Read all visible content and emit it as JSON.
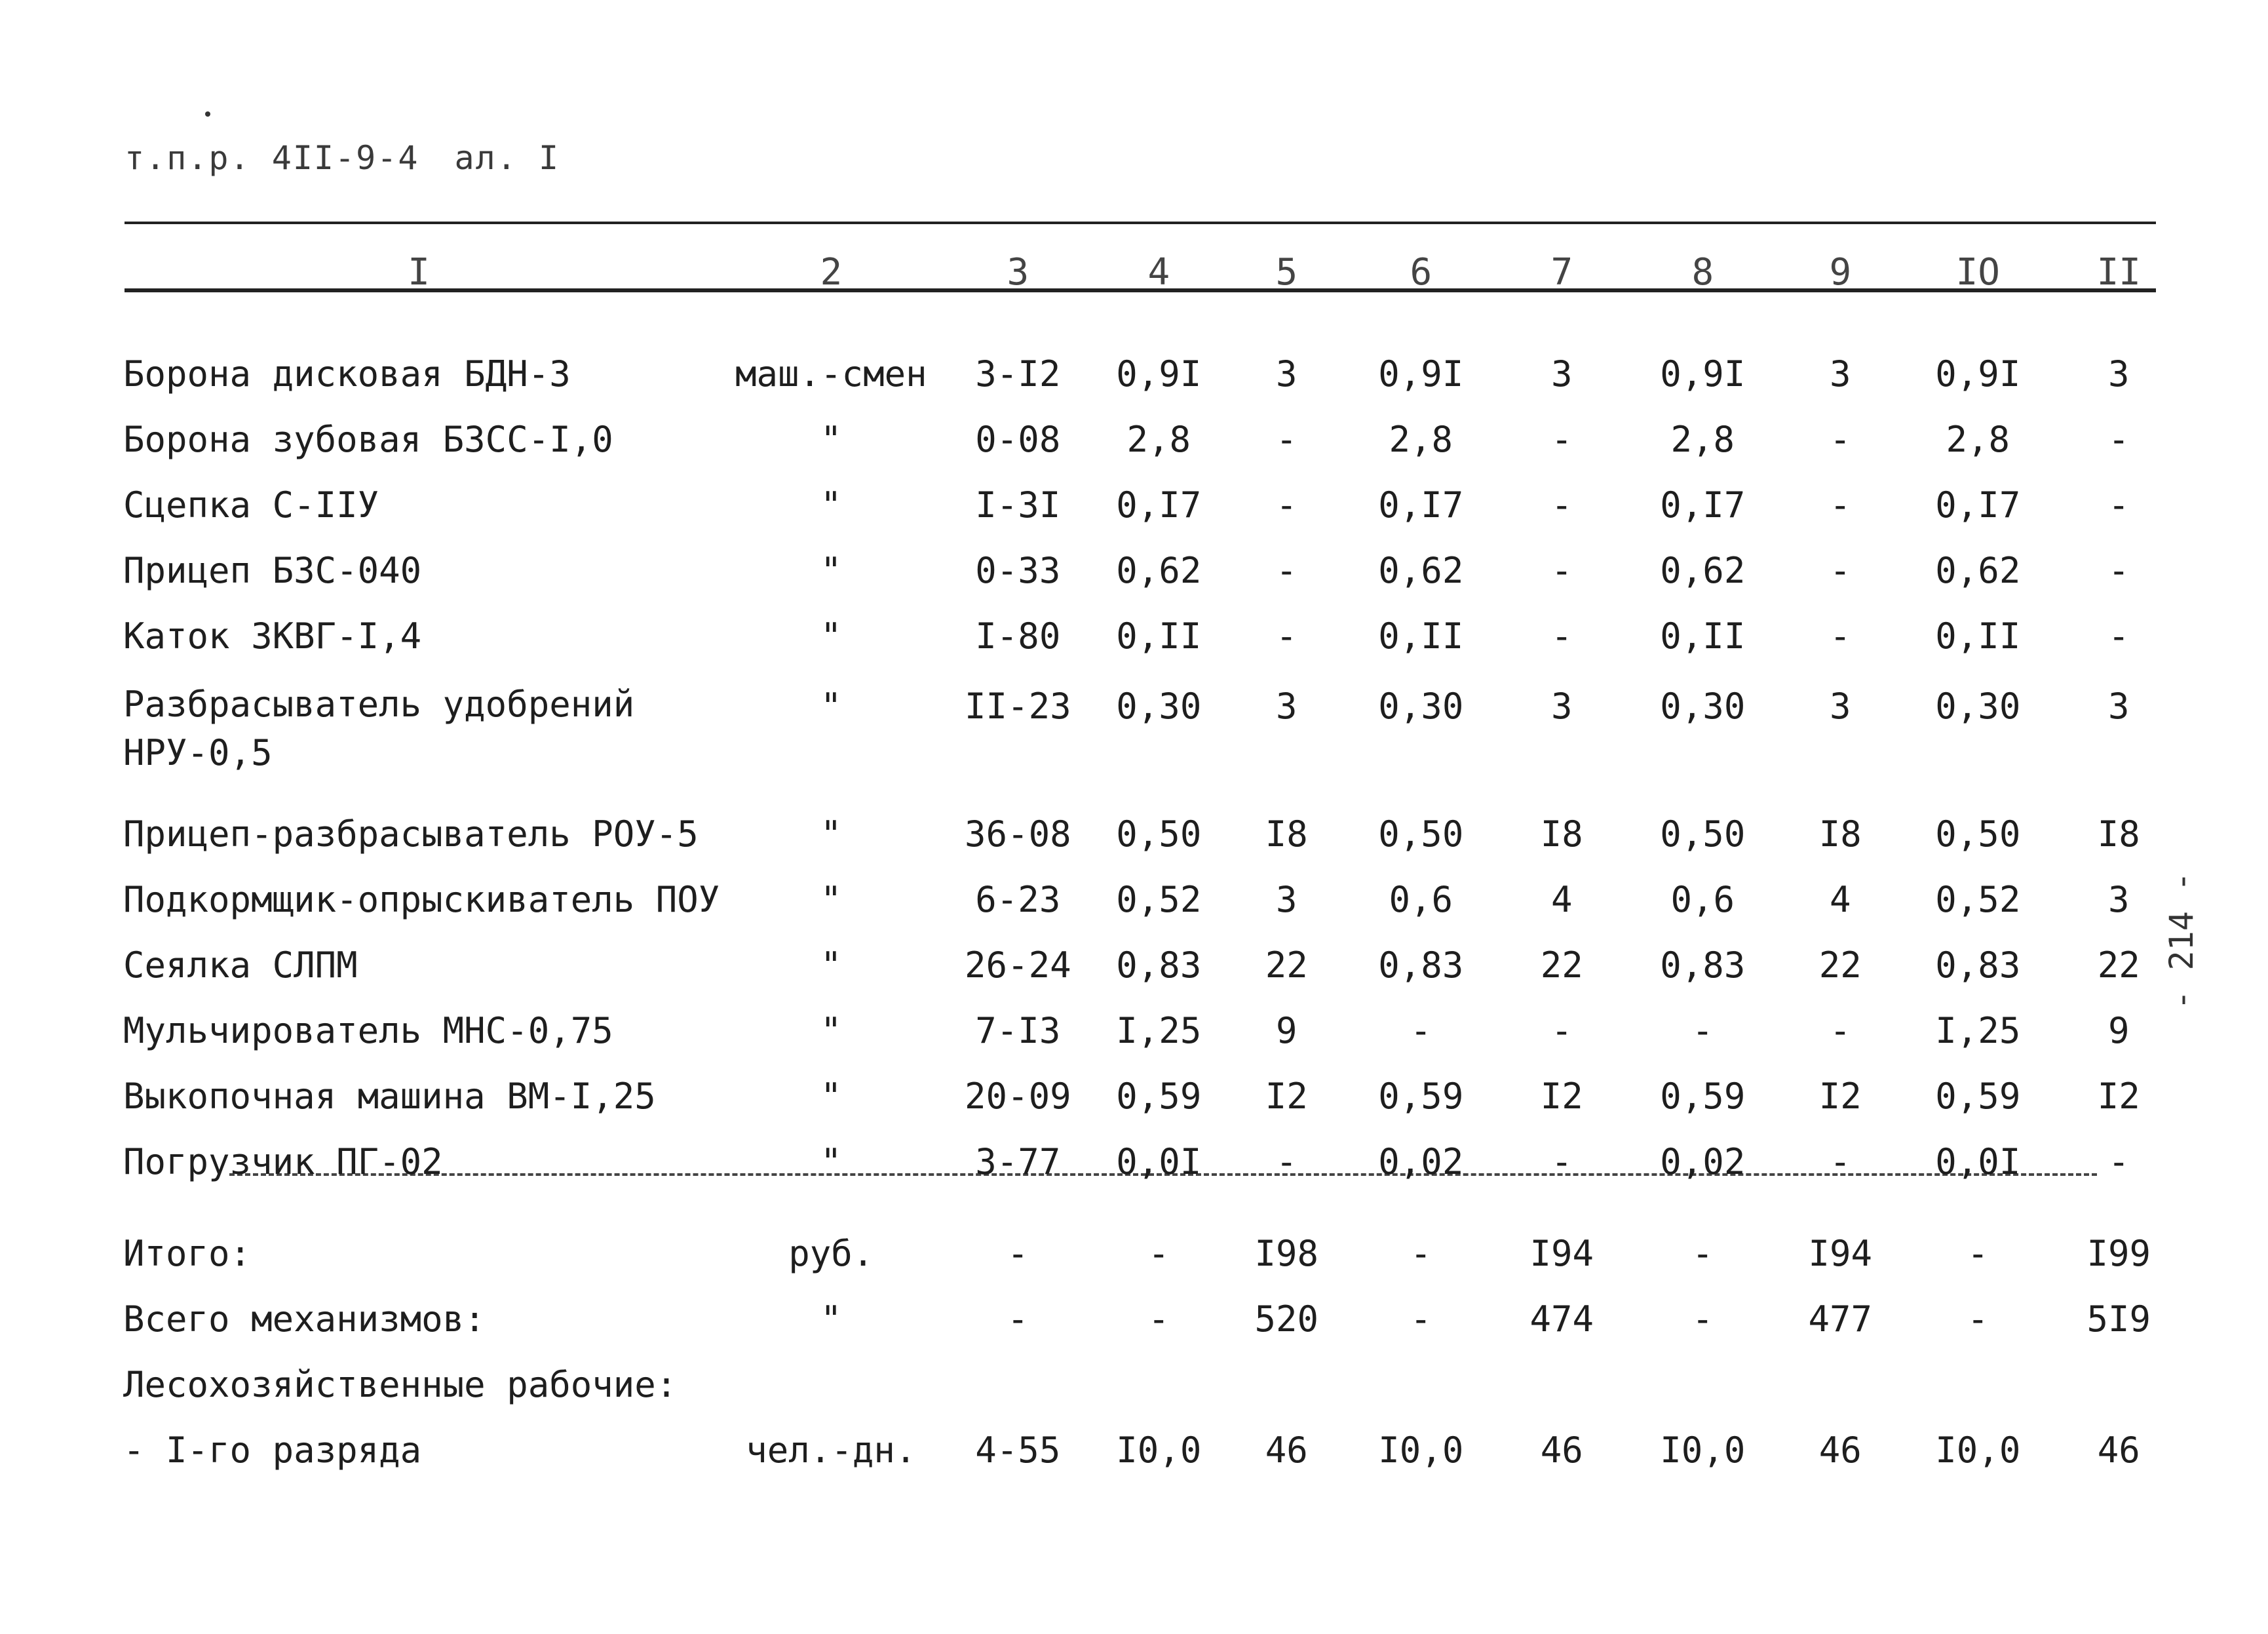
{
  "header": {
    "code": "т.п.р. 4II-9-4",
    "sheet": "ал. I"
  },
  "side_page_number": "- 214 -",
  "columns": [
    "I",
    "2",
    "3",
    "4",
    "5",
    "6",
    "7",
    "8",
    "9",
    "IO",
    "II"
  ],
  "rows": [
    {
      "name": "Борона дисковая БДН-3",
      "unit": "маш.-смен",
      "c3": "3-I2",
      "c4": "0,9I",
      "c5": "3",
      "c6": "0,9I",
      "c7": "3",
      "c8": "0,9I",
      "c9": "3",
      "c10": "0,9I",
      "c11": "3"
    },
    {
      "name": "Борона зубовая БЗСС-I,0",
      "unit": "\"",
      "c3": "0-08",
      "c4": "2,8",
      "c5": "-",
      "c6": "2,8",
      "c7": "-",
      "c8": "2,8",
      "c9": "-",
      "c10": "2,8",
      "c11": "-"
    },
    {
      "name": "Сцепка С-IIУ",
      "unit": "\"",
      "c3": "I-3I",
      "c4": "0,I7",
      "c5": "-",
      "c6": "0,I7",
      "c7": "-",
      "c8": "0,I7",
      "c9": "-",
      "c10": "0,I7",
      "c11": "-"
    },
    {
      "name": "Прицеп БЗС-040",
      "unit": "\"",
      "c3": "0-33",
      "c4": "0,62",
      "c5": "-",
      "c6": "0,62",
      "c7": "-",
      "c8": "0,62",
      "c9": "-",
      "c10": "0,62",
      "c11": "-"
    },
    {
      "name": "Каток ЗКВГ-I,4",
      "unit": "\"",
      "c3": "I-80",
      "c4": "0,II",
      "c5": "-",
      "c6": "0,II",
      "c7": "-",
      "c8": "0,II",
      "c9": "-",
      "c10": "0,II",
      "c11": "-"
    },
    {
      "name": "Разбрасыватель удобрений НРУ-0,5",
      "unit": "\"",
      "c3": "II-23",
      "c4": "0,30",
      "c5": "3",
      "c6": "0,30",
      "c7": "3",
      "c8": "0,30",
      "c9": "3",
      "c10": "0,30",
      "c11": "3"
    },
    {
      "name": "Прицеп-разбрасыватель РОУ-5",
      "unit": "\"",
      "c3": "36-08",
      "c4": "0,50",
      "c5": "I8",
      "c6": "0,50",
      "c7": "I8",
      "c8": "0,50",
      "c9": "I8",
      "c10": "0,50",
      "c11": "I8"
    },
    {
      "name": "Подкормщик-опрыскиватель ПОУ",
      "unit": "\"",
      "c3": "6-23",
      "c4": "0,52",
      "c5": "3",
      "c6": "0,6",
      "c7": "4",
      "c8": "0,6",
      "c9": "4",
      "c10": "0,52",
      "c11": "3"
    },
    {
      "name": "Сеялка СЛПМ",
      "unit": "\"",
      "c3": "26-24",
      "c4": "0,83",
      "c5": "22",
      "c6": "0,83",
      "c7": "22",
      "c8": "0,83",
      "c9": "22",
      "c10": "0,83",
      "c11": "22"
    },
    {
      "name": "Мульчирователь МНС-0,75",
      "unit": "\"",
      "c3": "7-I3",
      "c4": "I,25",
      "c5": "9",
      "c6": "-",
      "c7": "-",
      "c8": "-",
      "c9": "-",
      "c10": "I,25",
      "c11": "9"
    },
    {
      "name": "Выкопочная машина ВМ-I,25",
      "unit": "\"",
      "c3": "20-09",
      "c4": "0,59",
      "c5": "I2",
      "c6": "0,59",
      "c7": "I2",
      "c8": "0,59",
      "c9": "I2",
      "c10": "0,59",
      "c11": "I2"
    },
    {
      "name": "Погрузчик ПГ-02",
      "unit": "\"",
      "c3": "3-77",
      "c4": "0,0I",
      "c5": "-",
      "c6": "0,02",
      "c7": "-",
      "c8": "0,02",
      "c9": "-",
      "c10": "0,0I",
      "c11": "-"
    }
  ],
  "totals": [
    {
      "name": "Итого:",
      "unit": "руб.",
      "c3": "-",
      "c4": "-",
      "c5": "I98",
      "c6": "-",
      "c7": "I94",
      "c8": "-",
      "c9": "I94",
      "c10": "-",
      "c11": "I99"
    },
    {
      "name": "Всего механизмов:",
      "unit": "\"",
      "c3": "-",
      "c4": "-",
      "c5": "520",
      "c6": "-",
      "c7": "474",
      "c8": "-",
      "c9": "477",
      "c10": "-",
      "c11": "5I9"
    }
  ],
  "section_title": "Лесохозяйственные рабочие:",
  "workers": [
    {
      "name": "- I-го разряда",
      "unit": "чел.-дн.",
      "c3": "4-55",
      "c4": "I0,0",
      "c5": "46",
      "c6": "I0,0",
      "c7": "46",
      "c8": "I0,0",
      "c9": "46",
      "c10": "I0,0",
      "c11": "46"
    }
  ]
}
